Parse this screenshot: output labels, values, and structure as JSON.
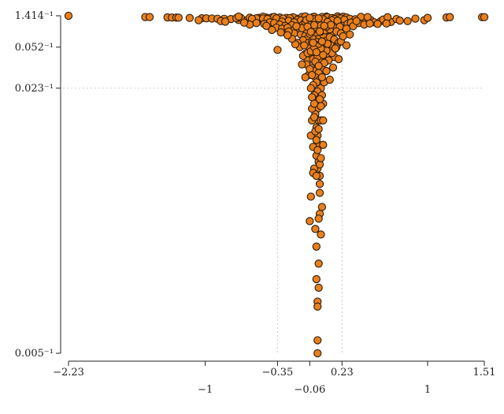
{
  "chart_data": {
    "type": "scatter",
    "title": "",
    "xlabel": "",
    "ylabel": "",
    "x_scale": "linear",
    "y_scale": "reciprocal",
    "xlim": [
      -2.23,
      1.51
    ],
    "ylim": [
      1.414,
      0.005
    ],
    "grid": {
      "x_lines": [
        -0.35,
        0.23
      ],
      "y_lines": [
        0.023
      ]
    },
    "colors": {
      "fill": "#e8801e",
      "edge": "#2a1a0a",
      "axis": "#222222",
      "grid": "#cccccc"
    },
    "x_ticks": [
      {
        "value": -2.23,
        "label": "−2.23",
        "row": 0
      },
      {
        "value": -1,
        "label": "−1",
        "row": 1
      },
      {
        "value": -0.35,
        "label": "−0.35",
        "row": 0
      },
      {
        "value": -0.06,
        "label": "−0.06",
        "row": 1
      },
      {
        "value": 0.23,
        "label": "0.23",
        "row": 0
      },
      {
        "value": 1,
        "label": "1",
        "row": 1
      },
      {
        "value": 1.51,
        "label": "1.51",
        "row": 0
      }
    ],
    "y_ticks": [
      {
        "value": 0.005,
        "label": "0.005⁻¹"
      },
      {
        "value": 0.023,
        "label": "0.023⁻¹"
      },
      {
        "value": 0.052,
        "label": "0.052⁻¹"
      },
      {
        "value": 1.414,
        "label": "1.414⁻¹"
      }
    ],
    "points": [
      [
        -2.23,
        1.414
      ],
      [
        -1.54,
        0.69
      ],
      [
        -1.5,
        0.68
      ],
      [
        -1.34,
        0.6
      ],
      [
        -1.3,
        0.57
      ],
      [
        -1.26,
        0.56
      ],
      [
        -1.24,
        0.55
      ],
      [
        -1.14,
        0.5
      ],
      [
        -1.03,
        0.46
      ],
      [
        -0.99,
        0.45
      ],
      [
        -0.94,
        0.43
      ],
      [
        -0.89,
        0.41
      ],
      [
        -0.83,
        0.4
      ],
      [
        -0.77,
        0.38
      ],
      [
        -0.7,
        0.37
      ],
      [
        -1.06,
        0.3
      ],
      [
        -0.86,
        0.26
      ],
      [
        -0.82,
        0.24
      ],
      [
        -0.7,
        0.31
      ],
      [
        -0.63,
        0.29
      ],
      [
        -0.58,
        0.33
      ],
      [
        -0.51,
        0.36
      ],
      [
        -0.47,
        0.31
      ],
      [
        -0.41,
        0.35
      ],
      [
        -0.36,
        0.28
      ],
      [
        -0.32,
        0.3
      ],
      [
        -0.27,
        0.34
      ],
      [
        -0.22,
        0.39
      ],
      [
        -0.18,
        0.43
      ],
      [
        -0.12,
        0.37
      ],
      [
        -0.08,
        0.41
      ],
      [
        -0.72,
        0.48
      ],
      [
        -0.68,
        0.52
      ],
      [
        -0.6,
        0.55
      ],
      [
        -0.52,
        0.51
      ],
      [
        -0.45,
        0.56
      ],
      [
        -0.4,
        0.61
      ],
      [
        -0.33,
        0.58
      ],
      [
        -0.27,
        0.52
      ],
      [
        -0.21,
        0.63
      ],
      [
        -0.7,
        0.85
      ],
      [
        -0.13,
        0.7
      ],
      [
        -0.1,
        0.92
      ],
      [
        -0.02,
        0.77
      ],
      [
        0.05,
        0.72
      ],
      [
        0.09,
        0.84
      ],
      [
        0.19,
        0.95
      ],
      [
        0.24,
        0.8
      ],
      [
        -0.48,
        0.82
      ],
      [
        -0.38,
        0.74
      ],
      [
        -0.03,
        0.68
      ],
      [
        -0.02,
        0.73
      ],
      [
        0.1,
        0.62
      ],
      [
        0.14,
        0.48
      ],
      [
        0.2,
        0.52
      ],
      [
        0.27,
        0.58
      ],
      [
        0.16,
        0.39
      ],
      [
        0.22,
        0.44
      ],
      [
        0.3,
        0.41
      ],
      [
        0.35,
        0.36
      ],
      [
        0.41,
        0.43
      ],
      [
        0.25,
        0.33
      ],
      [
        0.39,
        0.31
      ],
      [
        0.44,
        0.27
      ],
      [
        0.49,
        0.3
      ],
      [
        0.52,
        0.22
      ],
      [
        0.58,
        0.26
      ],
      [
        0.6,
        0.34
      ],
      [
        0.67,
        0.23
      ],
      [
        0.72,
        0.38
      ],
      [
        0.75,
        0.28
      ],
      [
        0.82,
        0.26
      ],
      [
        0.89,
        0.42
      ],
      [
        0.97,
        0.3
      ],
      [
        1.0,
        0.51
      ],
      [
        1.17,
        0.58
      ],
      [
        1.2,
        0.67
      ],
      [
        1.49,
        0.65
      ],
      [
        1.51,
        0.66
      ],
      [
        0.64,
        0.62
      ],
      [
        0.4,
        0.74
      ],
      [
        0.46,
        0.67
      ],
      [
        -0.54,
        0.46
      ],
      [
        -0.48,
        0.43
      ],
      [
        -0.44,
        0.39
      ],
      [
        -0.58,
        0.4
      ],
      [
        -0.36,
        0.45
      ],
      [
        -0.3,
        0.42
      ],
      [
        -0.24,
        0.47
      ],
      [
        -0.17,
        0.33
      ],
      [
        -0.14,
        0.29
      ],
      [
        -0.25,
        0.27
      ],
      [
        -0.31,
        0.24
      ],
      [
        -0.2,
        0.22
      ],
      [
        -0.42,
        0.22
      ],
      [
        -0.38,
        0.2
      ],
      [
        -0.54,
        0.2
      ],
      [
        -0.47,
        0.18
      ],
      [
        -0.33,
        0.17
      ],
      [
        -0.28,
        0.15
      ],
      [
        -0.22,
        0.16
      ],
      [
        -0.16,
        0.14
      ],
      [
        -0.12,
        0.17
      ],
      [
        -0.08,
        0.19
      ],
      [
        -0.04,
        0.2
      ],
      [
        0.02,
        0.21
      ],
      [
        0.06,
        0.19
      ],
      [
        0.11,
        0.18
      ],
      [
        0.18,
        0.17
      ],
      [
        0.24,
        0.15
      ],
      [
        0.28,
        0.18
      ],
      [
        0.31,
        0.21
      ],
      [
        0.38,
        0.2
      ],
      [
        0.43,
        0.17
      ],
      [
        0.48,
        0.19
      ],
      [
        -0.6,
        0.17
      ],
      [
        -0.1,
        0.23
      ],
      [
        0.0,
        0.24
      ],
      [
        0.08,
        0.26
      ],
      [
        0.14,
        0.3
      ],
      [
        0.19,
        0.27
      ],
      [
        0.04,
        0.33
      ],
      [
        0.0,
        0.29
      ],
      [
        -0.05,
        0.27
      ],
      [
        -0.09,
        0.31
      ],
      [
        0.06,
        0.36
      ],
      [
        0.1,
        0.23
      ],
      [
        -0.02,
        0.38
      ],
      [
        0.02,
        0.45
      ],
      [
        -0.06,
        0.52
      ],
      [
        -0.36,
        0.13
      ],
      [
        -0.31,
        0.12
      ],
      [
        -0.26,
        0.13
      ],
      [
        -0.2,
        0.11
      ],
      [
        -0.15,
        0.12
      ],
      [
        -0.11,
        0.1
      ],
      [
        -0.07,
        0.12
      ],
      [
        -0.03,
        0.11
      ],
      [
        0.02,
        0.13
      ],
      [
        0.06,
        0.12
      ],
      [
        0.11,
        0.11
      ],
      [
        0.16,
        0.13
      ],
      [
        0.21,
        0.14
      ],
      [
        -0.4,
        0.11
      ],
      [
        0.27,
        0.12
      ],
      [
        -0.2,
        0.09
      ],
      [
        -0.14,
        0.085
      ],
      [
        -0.1,
        0.08
      ],
      [
        -0.05,
        0.09
      ],
      [
        0.0,
        0.085
      ],
      [
        0.05,
        0.09
      ],
      [
        0.1,
        0.08
      ],
      [
        0.14,
        0.095
      ],
      [
        0.18,
        0.1
      ],
      [
        0.22,
        0.09
      ],
      [
        0.3,
        0.085
      ],
      [
        -0.25,
        0.1
      ],
      [
        -0.32,
        0.095
      ],
      [
        -0.02,
        0.075
      ],
      [
        0.03,
        0.072
      ],
      [
        0.08,
        0.07
      ],
      [
        -0.08,
        0.07
      ],
      [
        0.12,
        0.075
      ],
      [
        0.16,
        0.068
      ],
      [
        -0.12,
        0.066
      ],
      [
        0.2,
        0.06
      ],
      [
        -0.17,
        0.06
      ],
      [
        -0.07,
        0.06
      ],
      [
        0.07,
        0.058
      ],
      [
        0.13,
        0.055
      ],
      [
        -0.01,
        0.055
      ],
      [
        0.18,
        0.052
      ],
      [
        -0.15,
        0.052
      ],
      [
        -0.06,
        0.05
      ],
      [
        0.05,
        0.048
      ],
      [
        0.12,
        0.046
      ],
      [
        -0.02,
        0.045
      ],
      [
        0.09,
        0.043
      ],
      [
        -0.1,
        0.043
      ],
      [
        0.16,
        0.04
      ],
      [
        0.2,
        0.038
      ],
      [
        -0.04,
        0.04
      ],
      [
        0.03,
        0.038
      ],
      [
        -0.08,
        0.037
      ],
      [
        0.08,
        0.036
      ],
      [
        0.0,
        0.034
      ],
      [
        -0.05,
        0.032
      ],
      [
        0.05,
        0.031
      ],
      [
        -0.02,
        0.03
      ],
      [
        0.02,
        0.029
      ],
      [
        -0.01,
        0.027
      ],
      [
        0.03,
        0.026
      ],
      [
        0.0,
        0.025
      ],
      [
        -0.03,
        0.024
      ],
      [
        0.04,
        0.023
      ],
      [
        0.01,
        0.022
      ],
      [
        -0.02,
        0.021
      ],
      [
        0.02,
        0.02
      ],
      [
        0.0,
        0.019
      ],
      [
        0.01,
        0.018
      ],
      [
        -0.01,
        0.017
      ],
      [
        0.02,
        0.016
      ],
      [
        0.0,
        0.015
      ],
      [
        0.01,
        0.014
      ],
      [
        0.02,
        0.013
      ],
      [
        0.0,
        0.012
      ],
      [
        0.02,
        0.0115
      ],
      [
        0.01,
        0.011
      ],
      [
        0.03,
        0.0105
      ],
      [
        -0.02,
        0.011
      ],
      [
        0.04,
        0.016
      ],
      [
        -0.04,
        0.018
      ],
      [
        0.06,
        0.019
      ],
      [
        -0.05,
        0.023
      ],
      [
        0.07,
        0.025
      ],
      [
        -0.07,
        0.028
      ],
      [
        0.09,
        0.03
      ],
      [
        -0.09,
        0.034
      ],
      [
        0.11,
        0.037
      ],
      [
        -0.12,
        0.041
      ],
      [
        0.14,
        0.044
      ],
      [
        0.17,
        0.05
      ],
      [
        -0.19,
        0.057
      ],
      [
        0.22,
        0.063
      ],
      [
        -0.22,
        0.07
      ],
      [
        0.24,
        0.078
      ],
      [
        -0.26,
        0.082
      ],
      [
        -0.35,
        0.048
      ],
      [
        0.27,
        0.055
      ],
      [
        -0.13,
        0.034
      ],
      [
        0.15,
        0.032
      ],
      [
        0.12,
        0.026
      ],
      [
        -0.1,
        0.027
      ],
      [
        0.05,
        0.0088
      ],
      [
        0.03,
        0.0085
      ],
      [
        0.0,
        0.0064
      ],
      [
        0.02,
        0.0062
      ],
      [
        0.02,
        0.0068
      ],
      [
        0.01,
        0.0059
      ],
      [
        0.01,
        0.0058
      ],
      [
        -0.06,
        0.0082
      ],
      [
        0.03,
        0.0095
      ],
      [
        0.03,
        0.01
      ],
      [
        0.04,
        0.0077
      ],
      [
        -0.05,
        0.0093
      ],
      [
        -0.05,
        0.014
      ],
      [
        -0.03,
        0.0128
      ],
      [
        0.06,
        0.013
      ],
      [
        -0.04,
        0.0205
      ],
      [
        0.05,
        0.021
      ],
      [
        -0.06,
        0.031
      ],
      [
        0.07,
        0.035
      ],
      [
        -0.08,
        0.044
      ],
      [
        0.09,
        0.047
      ],
      [
        0.01,
        0.005
      ],
      [
        0.01,
        0.0052
      ],
      [
        -0.04,
        0.016
      ],
      [
        0.06,
        0.016
      ],
      [
        0.0,
        0.0073
      ],
      [
        -0.01,
        0.0079
      ],
      [
        0.02,
        0.0083
      ],
      [
        0.03,
        0.0113
      ],
      [
        -0.03,
        0.0107
      ],
      [
        0.04,
        0.0118
      ],
      [
        -0.11,
        0.055
      ],
      [
        0.1,
        0.058
      ],
      [
        -0.03,
        0.038
      ],
      [
        0.01,
        0.04
      ],
      [
        0.06,
        0.042
      ],
      [
        -0.05,
        0.046
      ],
      [
        0.04,
        0.05
      ],
      [
        -0.02,
        0.052
      ],
      [
        0.02,
        0.058
      ],
      [
        -0.04,
        0.062
      ],
      [
        0.04,
        0.065
      ],
      [
        -0.01,
        0.068
      ],
      [
        0.01,
        0.072
      ],
      [
        -0.03,
        0.078
      ],
      [
        0.02,
        0.082
      ],
      [
        0.06,
        0.085
      ],
      [
        -0.06,
        0.088
      ],
      [
        0.0,
        0.095
      ],
      [
        0.04,
        0.1
      ],
      [
        -0.04,
        0.105
      ],
      [
        0.08,
        0.108
      ],
      [
        -0.09,
        0.112
      ],
      [
        0.12,
        0.115
      ],
      [
        0.02,
        0.12
      ],
      [
        -0.13,
        0.125
      ],
      [
        -0.01,
        0.135
      ],
      [
        0.09,
        0.14
      ],
      [
        -0.18,
        0.145
      ],
      [
        0.04,
        0.155
      ],
      [
        -0.06,
        0.16
      ],
      [
        0.13,
        0.165
      ],
      [
        0.33,
        0.145
      ],
      [
        -0.45,
        0.15
      ],
      [
        -0.65,
        0.21
      ],
      [
        0.55,
        0.18
      ],
      [
        0.63,
        0.19
      ],
      [
        0.36,
        0.26
      ],
      [
        -0.02,
        0.16
      ],
      [
        0.07,
        0.15
      ],
      [
        -0.08,
        0.14
      ],
      [
        0.03,
        0.1
      ],
      [
        -0.05,
        0.098
      ],
      [
        0.05,
        0.063
      ],
      [
        -0.03,
        0.06
      ],
      [
        0.0,
        0.045
      ],
      [
        -0.01,
        0.036
      ],
      [
        0.02,
        0.033
      ],
      [
        0.05,
        0.027
      ],
      [
        -0.04,
        0.028
      ],
      [
        0.03,
        0.02
      ],
      [
        -0.02,
        0.019
      ],
      [
        0.0,
        0.0135
      ],
      [
        0.01,
        0.0125
      ],
      [
        -0.01,
        0.0145
      ],
      [
        0.02,
        0.0148
      ],
      [
        0.0,
        0.0105
      ],
      [
        -0.02,
        0.0165
      ],
      [
        0.04,
        0.0185
      ]
    ]
  }
}
